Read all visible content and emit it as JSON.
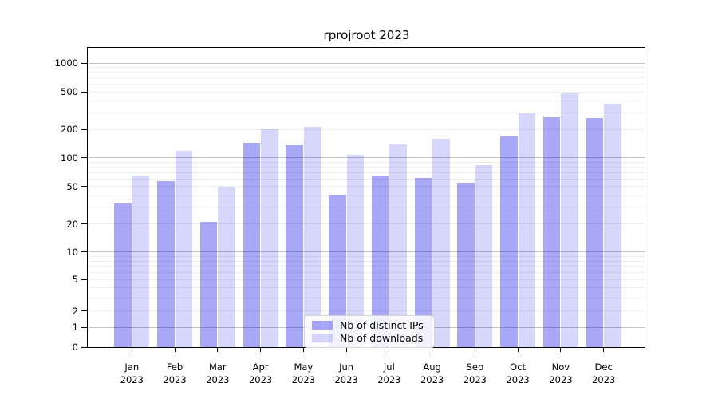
{
  "chart_data": {
    "type": "bar",
    "title": "rprojroot 2023",
    "x": {
      "months": [
        "Jan",
        "Feb",
        "Mar",
        "Apr",
        "May",
        "Jun",
        "Jul",
        "Aug",
        "Sep",
        "Oct",
        "Nov",
        "Dec"
      ],
      "year": "2023"
    },
    "categories": [
      "Jan 2023",
      "Feb 2023",
      "Mar 2023",
      "Apr 2023",
      "May 2023",
      "Jun 2023",
      "Jul 2023",
      "Aug 2023",
      "Sep 2023",
      "Oct 2023",
      "Nov 2023",
      "Dec 2023"
    ],
    "series": [
      {
        "name": "Nb of distinct IPs",
        "color": "rgba(0,0,230,0.34)",
        "color_hex_on_white": "#a8a8f6",
        "values": [
          33,
          57,
          21,
          144,
          137,
          41,
          65,
          61,
          55,
          169,
          268,
          266
        ]
      },
      {
        "name": "Nb of downloads",
        "color": "rgba(0,0,230,0.155)",
        "color_hex_on_white": "#d8d8fb",
        "values": [
          65,
          119,
          50,
          201,
          213,
          107,
          140,
          160,
          84,
          295,
          479,
          375
        ]
      }
    ],
    "y_axis": {
      "scale": "pseudo-log (asinh)",
      "tick_labels": [
        1000,
        500,
        200,
        100,
        50,
        20,
        10,
        5,
        2,
        1,
        0
      ],
      "major_gridlines": [
        1,
        10,
        100,
        1000
      ],
      "ylim": [
        0,
        1450
      ]
    },
    "grid": "on (major darker, minor faint)",
    "legend_position": "inside, lower center"
  }
}
